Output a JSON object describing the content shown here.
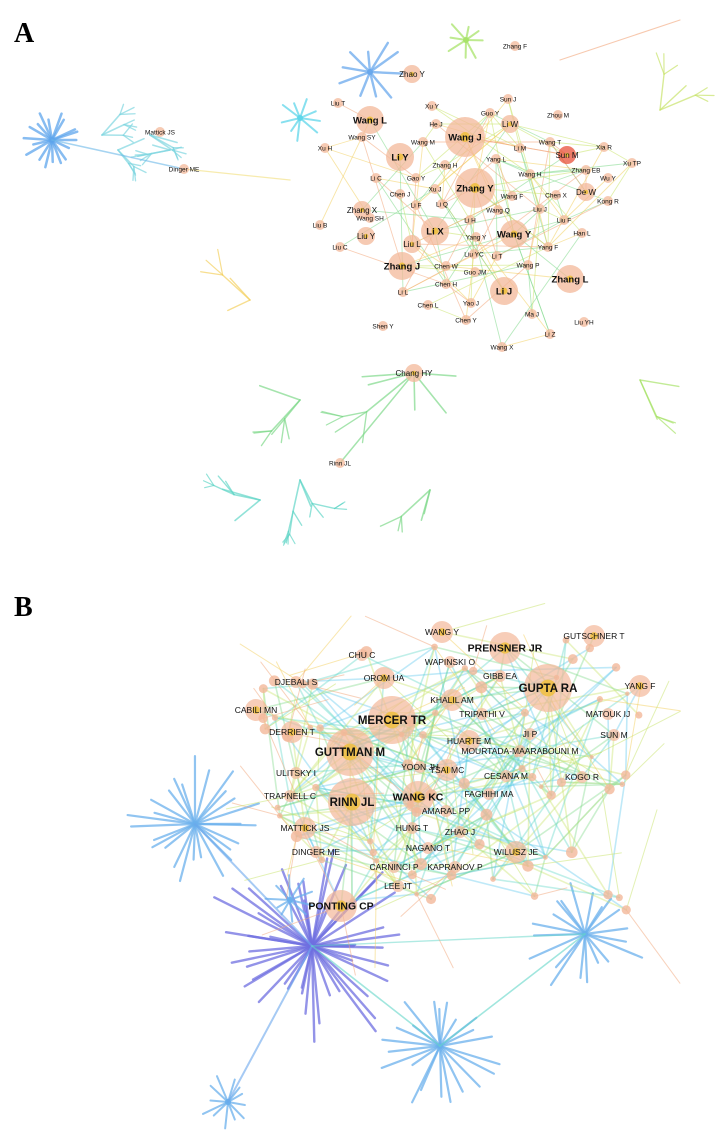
{
  "panel_a": {
    "letter": "A",
    "nodes": [
      {
        "label": "Zhang F",
        "size": 1
      },
      {
        "label": "Zhao Y",
        "size": 2
      },
      {
        "label": "Liu T",
        "size": 1
      },
      {
        "label": "Xu Y",
        "size": 1
      },
      {
        "label": "Sun J",
        "size": 1
      },
      {
        "label": "Guo Y",
        "size": 1
      },
      {
        "label": "Zhou M",
        "size": 1
      },
      {
        "label": "Mattick JS",
        "size": 1
      },
      {
        "label": "Wang L",
        "size": 3
      },
      {
        "label": "He J",
        "size": 1
      },
      {
        "label": "Li W",
        "size": 2
      },
      {
        "label": "Wang J",
        "size": 4
      },
      {
        "label": "Wang SY",
        "size": 1
      },
      {
        "label": "Wang T",
        "size": 1
      },
      {
        "label": "Wang M",
        "size": 1
      },
      {
        "label": "Li M",
        "size": 1
      },
      {
        "label": "Xia R",
        "size": 1
      },
      {
        "label": "Xu H",
        "size": 1
      },
      {
        "label": "Sun M",
        "size": 2
      },
      {
        "label": "Li Y",
        "size": 3
      },
      {
        "label": "Yang L",
        "size": 1
      },
      {
        "label": "Xu TP",
        "size": 1
      },
      {
        "label": "Zhang H",
        "size": 1
      },
      {
        "label": "Zhang EB",
        "size": 1
      },
      {
        "label": "Dinger ME",
        "size": 1
      },
      {
        "label": "Wang H",
        "size": 1
      },
      {
        "label": "Wu Y",
        "size": 1
      },
      {
        "label": "Li C",
        "size": 1
      },
      {
        "label": "Gao Y",
        "size": 1
      },
      {
        "label": "Zhang Y",
        "size": 4
      },
      {
        "label": "De W",
        "size": 2
      },
      {
        "label": "Chen J",
        "size": 1
      },
      {
        "label": "Xu J",
        "size": 1
      },
      {
        "label": "Chen X",
        "size": 1
      },
      {
        "label": "Kong R",
        "size": 1
      },
      {
        "label": "Wang F",
        "size": 1
      },
      {
        "label": "Li F",
        "size": 1
      },
      {
        "label": "Li Q",
        "size": 1
      },
      {
        "label": "Zhang X",
        "size": 2
      },
      {
        "label": "Wang Q",
        "size": 1
      },
      {
        "label": "Liu J",
        "size": 1
      },
      {
        "label": "Wang SH",
        "size": 1
      },
      {
        "label": "Li H",
        "size": 1
      },
      {
        "label": "Liu F",
        "size": 1
      },
      {
        "label": "Liu B",
        "size": 1
      },
      {
        "label": "Li X",
        "size": 3
      },
      {
        "label": "Han L",
        "size": 1
      },
      {
        "label": "Liu Y",
        "size": 2
      },
      {
        "label": "Wang Y",
        "size": 3
      },
      {
        "label": "Yang Y",
        "size": 1
      },
      {
        "label": "Liu L",
        "size": 2
      },
      {
        "label": "Liu C",
        "size": 1
      },
      {
        "label": "Yang F",
        "size": 1
      },
      {
        "label": "Liu YC",
        "size": 1
      },
      {
        "label": "Li T",
        "size": 1
      },
      {
        "label": "Zhang J",
        "size": 3
      },
      {
        "label": "Chen W",
        "size": 1
      },
      {
        "label": "Wang P",
        "size": 1
      },
      {
        "label": "Zhang L",
        "size": 3
      },
      {
        "label": "Guo JM",
        "size": 1
      },
      {
        "label": "Chen H",
        "size": 1
      },
      {
        "label": "Li J",
        "size": 3
      },
      {
        "label": "Li L",
        "size": 1
      },
      {
        "label": "Chen L",
        "size": 1
      },
      {
        "label": "Yao J",
        "size": 1
      },
      {
        "label": "Ma J",
        "size": 1
      },
      {
        "label": "Chen Y",
        "size": 1
      },
      {
        "label": "Liu YH",
        "size": 1
      },
      {
        "label": "Shen Y",
        "size": 1
      },
      {
        "label": "Li Z",
        "size": 1
      },
      {
        "label": "Wang X",
        "size": 1
      },
      {
        "label": "Chang HY",
        "size": 2
      },
      {
        "label": "Rinn JL",
        "size": 1
      }
    ]
  },
  "panel_b": {
    "letter": "B",
    "nodes": [
      {
        "label": "WANG Y",
        "size": 2
      },
      {
        "label": "GUTSCHNER T",
        "size": 2
      },
      {
        "label": "CHU C",
        "size": 1
      },
      {
        "label": "WAPINSKI O",
        "size": 1
      },
      {
        "label": "PRENSNER JR",
        "size": 3
      },
      {
        "label": "OROM UA",
        "size": 2
      },
      {
        "label": "GIBB EA",
        "size": 1
      },
      {
        "label": "DJEBALI S",
        "size": 1
      },
      {
        "label": "GUPTA RA",
        "size": 4
      },
      {
        "label": "YANG F",
        "size": 2
      },
      {
        "label": "KHALIL AM",
        "size": 2
      },
      {
        "label": "CABILI MN",
        "size": 2
      },
      {
        "label": "MERCER TR",
        "size": 4
      },
      {
        "label": "TRIPATHI V",
        "size": 1
      },
      {
        "label": "MATOUK IJ",
        "size": 1
      },
      {
        "label": "DERRIEN T",
        "size": 2
      },
      {
        "label": "JI P",
        "size": 1
      },
      {
        "label": "SUN M",
        "size": 1
      },
      {
        "label": "HUARTE M",
        "size": 2
      },
      {
        "label": "GUTTMAN M",
        "size": 4
      },
      {
        "label": "MOURTADA-MAARABOUNI M",
        "size": 1
      },
      {
        "label": "YOON JH",
        "size": 1
      },
      {
        "label": "ULITSKY I",
        "size": 1
      },
      {
        "label": "TSAI MC",
        "size": 2
      },
      {
        "label": "CESANA M",
        "size": 1
      },
      {
        "label": "KOGO R",
        "size": 1
      },
      {
        "label": "TRAPNELL C",
        "size": 1
      },
      {
        "label": "FAGHIHI MA",
        "size": 1
      },
      {
        "label": "RINN JL",
        "size": 4
      },
      {
        "label": "WANG KC",
        "size": 3
      },
      {
        "label": "AMARAL PP",
        "size": 1
      },
      {
        "label": "MATTICK JS",
        "size": 2
      },
      {
        "label": "HUNG T",
        "size": 1
      },
      {
        "label": "ZHAO J",
        "size": 1
      },
      {
        "label": "DINGER ME",
        "size": 1
      },
      {
        "label": "NAGANO T",
        "size": 1
      },
      {
        "label": "WILUSZ JE",
        "size": 2
      },
      {
        "label": "CARNINCI P",
        "size": 1
      },
      {
        "label": "KAPRANOV P",
        "size": 1
      },
      {
        "label": "LEE JT",
        "size": 1
      },
      {
        "label": "PONTING CP",
        "size": 3
      }
    ]
  },
  "colors": {
    "node_fill": "#f3b89a",
    "node_core": "#f0c040",
    "node_red": "#e8503a",
    "edge_palette": [
      "#f2a57a",
      "#f3d060",
      "#c8e36a",
      "#7fd98a",
      "#62d6c8",
      "#5fc9ee",
      "#6ba6ec",
      "#6f6fe0"
    ]
  }
}
